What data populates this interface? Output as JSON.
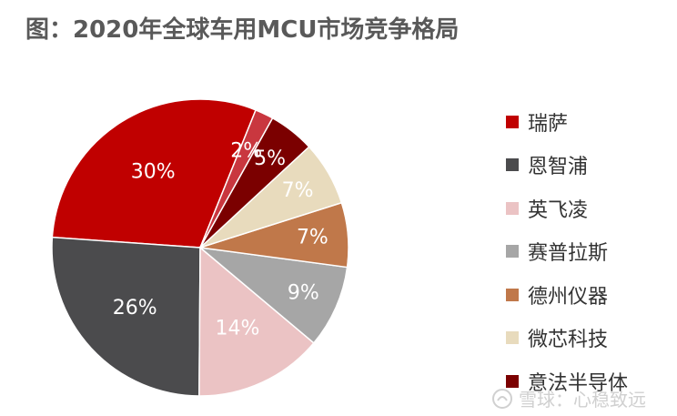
{
  "title": "图：2020年全球车用MCU市场竞争格局",
  "watermark": {
    "text": "雪球：心稳致远"
  },
  "chart_data": {
    "type": "pie",
    "title": "图：2020年全球车用MCU市场竞争格局",
    "start_angle_deg": 68,
    "direction": "counterclockwise",
    "legend_position": "right",
    "slices": [
      {
        "label": "瑞萨",
        "value": 30,
        "display": "30%",
        "color": "#c00000",
        "legend": true
      },
      {
        "label": "恩智浦",
        "value": 26,
        "display": "26%",
        "color": "#4b4b4d",
        "legend": true
      },
      {
        "label": "英飞凌",
        "value": 14,
        "display": "14%",
        "color": "#ebc3c4",
        "legend": true
      },
      {
        "label": "赛普拉斯",
        "value": 9,
        "display": "9%",
        "color": "#a6a6a6",
        "legend": true
      },
      {
        "label": "德州仪器",
        "value": 7,
        "display": "7%",
        "color": "#c0784a",
        "legend": true
      },
      {
        "label": "微芯科技",
        "value": 7,
        "display": "7%",
        "color": "#e8dbbd",
        "legend": true
      },
      {
        "label": "意法半导体",
        "value": 5,
        "display": "5%",
        "color": "#7b0000",
        "legend": true
      },
      {
        "label": "",
        "value": 2,
        "display": "2%",
        "color": "#c9373f",
        "legend": false
      }
    ]
  }
}
